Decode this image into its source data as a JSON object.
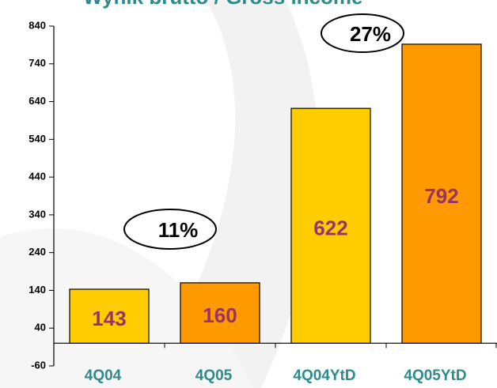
{
  "chart_data": {
    "type": "bar",
    "title": "Wynik brutto / Gross income",
    "categories": [
      "4Q04",
      "4Q05",
      "4Q04YtD",
      "4Q05YtD"
    ],
    "values": [
      143,
      160,
      622,
      792
    ],
    "colors": [
      "#ffcc00",
      "#ff9900",
      "#ffcc00",
      "#ff9900"
    ],
    "ylim": [
      -60,
      840
    ],
    "yticks": [
      -60,
      40,
      140,
      240,
      340,
      440,
      540,
      640,
      740,
      840
    ],
    "annotations": [
      "11%",
      "27%"
    ],
    "grid": false
  }
}
